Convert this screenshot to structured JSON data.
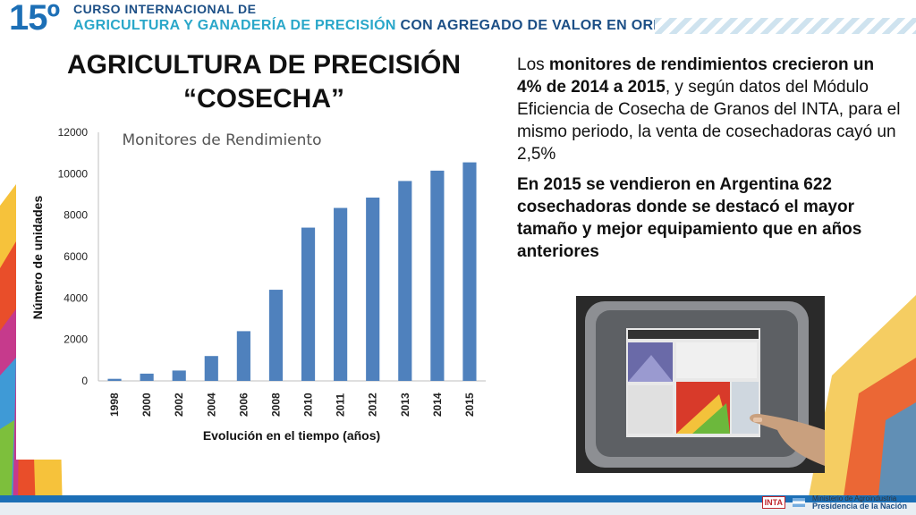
{
  "header": {
    "number": "15º",
    "line1": "CURSO INTERNACIONAL DE",
    "line2_part1": "AGRICULTURA Y GANADERÍA DE PRECISIÓN",
    "line2_part2": "CON AGREGADO DE VALOR EN ORIGEN"
  },
  "slide": {
    "title_line1": "AGRICULTURA DE PRECISIÓN",
    "title_line2": "“COSECHA”"
  },
  "body_text": {
    "p1_a": "Los ",
    "p1_b": "monitores de rendimientos crecieron un 4% de 2014 a 2015",
    "p1_c": ", y según datos del Módulo Eficiencia de Cosecha de Granos del INTA, para el mismo periodo, la venta de cosechadoras cayó un 2,5%",
    "p2": "En 2015 se vendieron en Argentina 622 cosechadoras donde se destacó el mayor tamaño y mejor equipamiento que en años anteriores"
  },
  "footer": {
    "inta": "INTA",
    "ministry_line1": "Ministerio de Agroindustria",
    "ministry_line2": "Presidencia de la Nación"
  },
  "colors": {
    "bar": "#4f81bd",
    "header_blue": "#1c6fb6",
    "header_cyan": "#2aa7c9"
  },
  "chart_data": {
    "type": "bar",
    "title": "Monitores de Rendimiento",
    "xlabel": "Evolución en el tiempo (años)",
    "ylabel": "Número de unidades",
    "categories": [
      "1998",
      "2000",
      "2002",
      "2004",
      "2006",
      "2008",
      "2010",
      "2011",
      "2012",
      "2013",
      "2014",
      "2015"
    ],
    "values": [
      100,
      350,
      500,
      1200,
      2400,
      4400,
      7400,
      8350,
      8850,
      9650,
      10150,
      10550
    ],
    "ylim": [
      0,
      12000
    ],
    "yticks": [
      0,
      2000,
      4000,
      6000,
      8000,
      10000,
      12000
    ],
    "grid": false
  }
}
